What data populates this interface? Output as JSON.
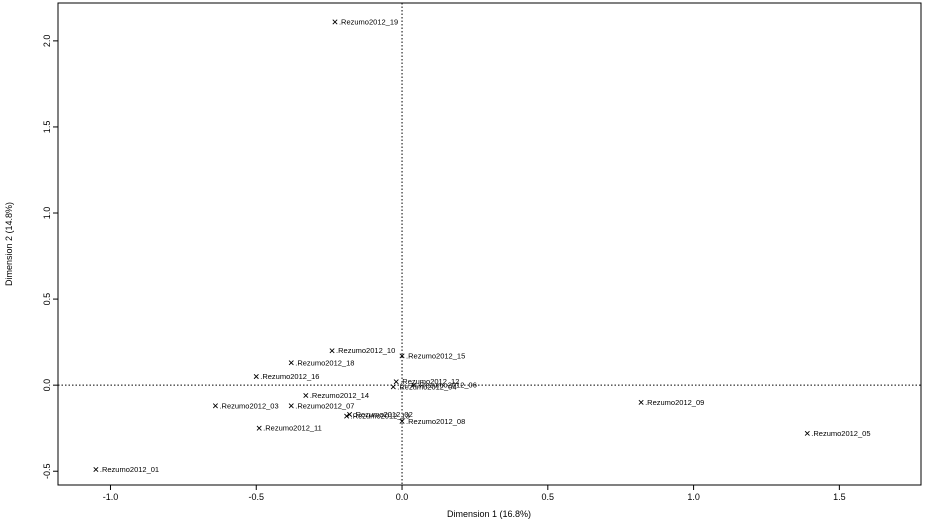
{
  "chart_data": {
    "type": "scatter",
    "xlabel": "Dimension 1 (16.8%)",
    "ylabel": "Dimension 2 (14.8%)",
    "xlim": [
      -1.18,
      1.78
    ],
    "ylim": [
      -0.58,
      2.22
    ],
    "x_ticks": [
      -1.0,
      -0.5,
      0.0,
      0.5,
      1.0,
      1.5
    ],
    "x_tick_labels": [
      "-1.0",
      "-0.5",
      "0.0",
      "0.5",
      "1.0",
      "1.5"
    ],
    "y_ticks": [
      -0.5,
      0.0,
      0.5,
      1.0,
      1.5,
      2.0
    ],
    "y_tick_labels": [
      "-0.5",
      "0.0",
      "0.5",
      "1.0",
      "1.5",
      "2.0"
    ],
    "reference_lines": {
      "x": 0,
      "y": 0,
      "style": "dotted"
    },
    "grid": false,
    "marker": "x",
    "points": [
      {
        "label": "X.Rezumo2012_19",
        "x": -0.23,
        "y": 2.11
      },
      {
        "label": "X.Rezumo2012_10",
        "x": -0.24,
        "y": 0.2
      },
      {
        "label": "X.Rezumo2012_15",
        "x": 0.0,
        "y": 0.17
      },
      {
        "label": "X.Rezumo2012_18",
        "x": -0.38,
        "y": 0.13
      },
      {
        "label": "X.Rezumo2012_16",
        "x": -0.5,
        "y": 0.05
      },
      {
        "label": "X.Rezumo2012_12",
        "x": -0.02,
        "y": 0.02
      },
      {
        "label": "X.Rezumo2012_06",
        "x": 0.04,
        "y": 0.0
      },
      {
        "label": "X.Rezumo2012_04",
        "x": -0.03,
        "y": -0.01
      },
      {
        "label": "X.Rezumo2012_14",
        "x": -0.33,
        "y": -0.06
      },
      {
        "label": "X.Rezumo2012_03",
        "x": -0.64,
        "y": -0.12
      },
      {
        "label": "X.Rezumo2012_07",
        "x": -0.38,
        "y": -0.12
      },
      {
        "label": "X.Rezumo2012_02",
        "x": -0.18,
        "y": -0.17
      },
      {
        "label": "X.Rezumo2012_13",
        "x": -0.19,
        "y": -0.18
      },
      {
        "label": "X.Rezumo2012_08",
        "x": 0.0,
        "y": -0.21
      },
      {
        "label": "X.Rezumo2012_11",
        "x": -0.49,
        "y": -0.25
      },
      {
        "label": "X.Rezumo2012_09",
        "x": 0.82,
        "y": -0.1
      },
      {
        "label": "X.Rezumo2012_05",
        "x": 1.39,
        "y": -0.28
      },
      {
        "label": "X.Rezumo2012_01",
        "x": -1.05,
        "y": -0.49
      }
    ]
  }
}
